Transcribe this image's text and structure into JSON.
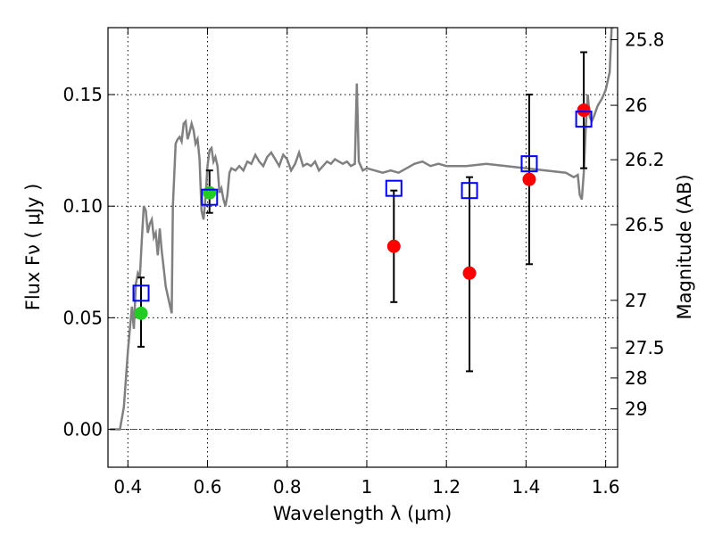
{
  "chart_data": {
    "type": "scatter",
    "title": "",
    "xlabel": "Wavelength  λ (μm)",
    "ylabel": "Flux  Fν  ( μJy )",
    "ylabel_right": "Magnitude (AB)",
    "xlim": [
      0.35,
      1.63
    ],
    "ylim": [
      -0.017,
      0.18
    ],
    "grid": true,
    "x_ticks": [
      0.4,
      0.6,
      0.8,
      1.0,
      1.2,
      1.4,
      1.6
    ],
    "x_tick_labels": [
      "0.4",
      "0.6",
      "0.8",
      "1",
      "1.2",
      "1.4",
      "1.6"
    ],
    "y_ticks": [
      0.0,
      0.05,
      0.1,
      0.15
    ],
    "y_tick_labels": [
      "0.00",
      "0.05",
      "0.10",
      "0.15"
    ],
    "right_ticks": [
      {
        "label": "25.8",
        "flux": 0.1746
      },
      {
        "label": "26",
        "flux": 0.1452
      },
      {
        "label": "26.2",
        "flux": 0.1208
      },
      {
        "label": "26.5",
        "flux": 0.0917
      },
      {
        "label": "27",
        "flux": 0.0578
      },
      {
        "label": "27.5",
        "flux": 0.0365
      },
      {
        "label": "28",
        "flux": 0.023
      },
      {
        "label": "29",
        "flux": 0.0092
      }
    ],
    "series": [
      {
        "type": "line",
        "color": "#808080",
        "points": [
          [
            0.355,
            0.0
          ],
          [
            0.38,
            0.0
          ],
          [
            0.39,
            0.01
          ],
          [
            0.4,
            0.035
          ],
          [
            0.41,
            0.055
          ],
          [
            0.415,
            0.045
          ],
          [
            0.42,
            0.065
          ],
          [
            0.425,
            0.07
          ],
          [
            0.43,
            0.068
          ],
          [
            0.435,
            0.085
          ],
          [
            0.44,
            0.1
          ],
          [
            0.445,
            0.098
          ],
          [
            0.45,
            0.088
          ],
          [
            0.455,
            0.092
          ],
          [
            0.46,
            0.094
          ],
          [
            0.465,
            0.086
          ],
          [
            0.47,
            0.088
          ],
          [
            0.475,
            0.078
          ],
          [
            0.48,
            0.09
          ],
          [
            0.485,
            0.08
          ],
          [
            0.49,
            0.072
          ],
          [
            0.495,
            0.064
          ],
          [
            0.5,
            0.06
          ],
          [
            0.505,
            0.056
          ],
          [
            0.51,
            0.052
          ],
          [
            0.513,
            0.1
          ],
          [
            0.52,
            0.128
          ],
          [
            0.525,
            0.13
          ],
          [
            0.53,
            0.131
          ],
          [
            0.535,
            0.129
          ],
          [
            0.54,
            0.137
          ],
          [
            0.545,
            0.138
          ],
          [
            0.55,
            0.13
          ],
          [
            0.555,
            0.133
          ],
          [
            0.56,
            0.137
          ],
          [
            0.565,
            0.134
          ],
          [
            0.57,
            0.128
          ],
          [
            0.575,
            0.13
          ],
          [
            0.58,
            0.121
          ],
          [
            0.585,
            0.098
          ],
          [
            0.59,
            0.094
          ],
          [
            0.595,
            0.104
          ],
          [
            0.6,
            0.118
          ],
          [
            0.605,
            0.125
          ],
          [
            0.61,
            0.126
          ],
          [
            0.615,
            0.12
          ],
          [
            0.62,
            0.122
          ],
          [
            0.625,
            0.118
          ],
          [
            0.63,
            0.106
          ],
          [
            0.635,
            0.108
          ],
          [
            0.64,
            0.103
          ],
          [
            0.645,
            0.1
          ],
          [
            0.65,
            0.105
          ],
          [
            0.655,
            0.115
          ],
          [
            0.66,
            0.117
          ],
          [
            0.67,
            0.116
          ],
          [
            0.68,
            0.118
          ],
          [
            0.69,
            0.116
          ],
          [
            0.7,
            0.12
          ],
          [
            0.71,
            0.119
          ],
          [
            0.72,
            0.123
          ],
          [
            0.73,
            0.12
          ],
          [
            0.74,
            0.118
          ],
          [
            0.75,
            0.122
          ],
          [
            0.76,
            0.124
          ],
          [
            0.77,
            0.121
          ],
          [
            0.78,
            0.118
          ],
          [
            0.79,
            0.123
          ],
          [
            0.8,
            0.121
          ],
          [
            0.81,
            0.116
          ],
          [
            0.82,
            0.119
          ],
          [
            0.83,
            0.124
          ],
          [
            0.84,
            0.118
          ],
          [
            0.85,
            0.119
          ],
          [
            0.86,
            0.118
          ],
          [
            0.87,
            0.12
          ],
          [
            0.88,
            0.116
          ],
          [
            0.89,
            0.118
          ],
          [
            0.9,
            0.12
          ],
          [
            0.91,
            0.119
          ],
          [
            0.92,
            0.121
          ],
          [
            0.93,
            0.12
          ],
          [
            0.94,
            0.119
          ],
          [
            0.95,
            0.12
          ],
          [
            0.96,
            0.118
          ],
          [
            0.97,
            0.119
          ],
          [
            0.975,
            0.155
          ],
          [
            0.98,
            0.12
          ],
          [
            0.99,
            0.116
          ],
          [
            1.0,
            0.117
          ],
          [
            1.02,
            0.116
          ],
          [
            1.04,
            0.115
          ],
          [
            1.06,
            0.116
          ],
          [
            1.08,
            0.115
          ],
          [
            1.1,
            0.117
          ],
          [
            1.12,
            0.119
          ],
          [
            1.14,
            0.12
          ],
          [
            1.16,
            0.118
          ],
          [
            1.18,
            0.119
          ],
          [
            1.2,
            0.118
          ],
          [
            1.25,
            0.118
          ],
          [
            1.3,
            0.119
          ],
          [
            1.35,
            0.118
          ],
          [
            1.4,
            0.117
          ],
          [
            1.45,
            0.116
          ],
          [
            1.5,
            0.115
          ],
          [
            1.52,
            0.113
          ],
          [
            1.53,
            0.114
          ],
          [
            1.535,
            0.105
          ],
          [
            1.54,
            0.103
          ],
          [
            1.545,
            0.115
          ],
          [
            1.55,
            0.135
          ],
          [
            1.555,
            0.15
          ],
          [
            1.56,
            0.14
          ],
          [
            1.565,
            0.138
          ],
          [
            1.57,
            0.14
          ],
          [
            1.58,
            0.145
          ],
          [
            1.59,
            0.148
          ],
          [
            1.6,
            0.152
          ],
          [
            1.61,
            0.16
          ],
          [
            1.615,
            0.18
          ],
          [
            1.62,
            0.18
          ]
        ]
      },
      {
        "type": "scatter",
        "marker": "circle",
        "color": "#22cc22",
        "points": [
          [
            0.433,
            0.052
          ],
          [
            0.605,
            0.106
          ]
        ]
      },
      {
        "type": "scatter",
        "marker": "circle",
        "color": "#ff0000",
        "points": [
          [
            1.068,
            0.082
          ],
          [
            1.258,
            0.07
          ],
          [
            1.408,
            0.112
          ],
          [
            1.545,
            0.143
          ]
        ]
      },
      {
        "type": "scatter",
        "marker": "open-square",
        "color": "#0000ff",
        "points": [
          [
            0.433,
            0.061
          ],
          [
            0.605,
            0.104
          ],
          [
            1.068,
            0.108
          ],
          [
            1.258,
            0.107
          ],
          [
            1.408,
            0.119
          ],
          [
            1.545,
            0.139
          ]
        ]
      },
      {
        "type": "errorbar",
        "color": "#000000",
        "points": [
          {
            "x": 0.433,
            "low": 0.037,
            "high": 0.068
          },
          {
            "x": 0.605,
            "low": 0.097,
            "high": 0.116
          },
          {
            "x": 1.068,
            "low": 0.057,
            "high": 0.107
          },
          {
            "x": 1.258,
            "low": 0.026,
            "high": 0.113
          },
          {
            "x": 1.408,
            "low": 0.074,
            "high": 0.15
          },
          {
            "x": 1.545,
            "low": 0.117,
            "high": 0.169
          }
        ]
      }
    ],
    "colors": {
      "zero_line": "#555555"
    }
  }
}
